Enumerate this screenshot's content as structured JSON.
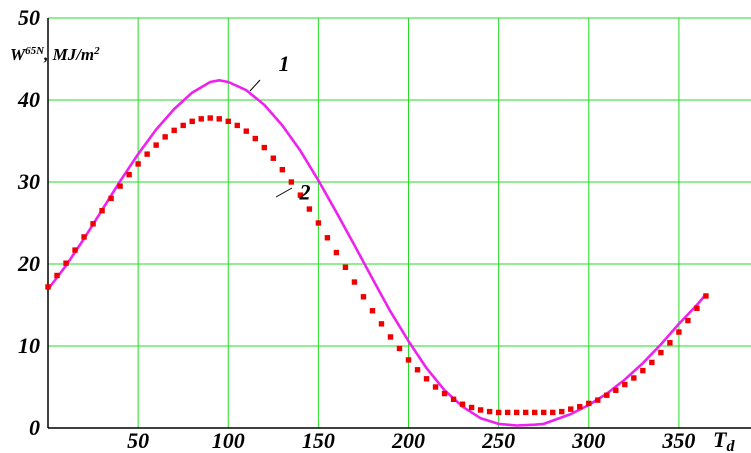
{
  "chart_data": {
    "type": "line",
    "ylabel_main": "W",
    "ylabel_sup": "65N",
    "ylabel_unit": ", MJ/m",
    "ylabel_unit_sup": "2",
    "xlabel_main": "T",
    "xlabel_sub": "d",
    "xlim": [
      0,
      390
    ],
    "ylim": [
      0,
      50
    ],
    "x_ticks": [
      50,
      100,
      150,
      200,
      250,
      300,
      350
    ],
    "y_ticks": [
      0,
      10,
      20,
      30,
      40,
      50
    ],
    "grid": true,
    "colors": {
      "grid": "#22dd22",
      "series1": "#ee22ee",
      "series2": "#ee0000",
      "axis": "#000000"
    },
    "series": [
      {
        "name": "1",
        "style": "solid",
        "x": [
          0,
          10,
          20,
          30,
          40,
          50,
          60,
          70,
          80,
          90,
          95,
          100,
          110,
          120,
          130,
          140,
          150,
          160,
          170,
          180,
          190,
          200,
          210,
          220,
          230,
          240,
          250,
          260,
          270,
          275,
          280,
          290,
          300,
          310,
          320,
          330,
          340,
          350,
          360,
          365
        ],
        "values": [
          16.9,
          19.8,
          23.1,
          26.6,
          30.1,
          33.4,
          36.4,
          38.9,
          40.9,
          42.2,
          42.4,
          42.2,
          41.2,
          39.4,
          36.9,
          33.8,
          30.2,
          26.3,
          22.3,
          18.2,
          14.2,
          10.6,
          7.3,
          4.6,
          2.6,
          1.2,
          0.5,
          0.3,
          0.4,
          0.5,
          0.9,
          1.7,
          2.8,
          4.2,
          5.9,
          7.9,
          10.2,
          12.7,
          15.0,
          16.3
        ]
      },
      {
        "name": "2",
        "style": "dotted",
        "x": [
          0,
          5,
          10,
          15,
          20,
          25,
          30,
          35,
          40,
          45,
          50,
          55,
          60,
          65,
          70,
          75,
          80,
          85,
          90,
          95,
          100,
          105,
          110,
          115,
          120,
          125,
          130,
          135,
          140,
          145,
          150,
          155,
          160,
          165,
          170,
          175,
          180,
          185,
          190,
          195,
          200,
          205,
          210,
          215,
          220,
          225,
          230,
          235,
          240,
          245,
          250,
          255,
          260,
          265,
          270,
          275,
          280,
          285,
          290,
          295,
          300,
          305,
          310,
          315,
          320,
          325,
          330,
          335,
          340,
          345,
          350,
          355,
          360,
          365
        ],
        "values": [
          17.2,
          18.6,
          20.1,
          21.7,
          23.3,
          24.9,
          26.5,
          28.0,
          29.5,
          30.9,
          32.2,
          33.4,
          34.5,
          35.5,
          36.3,
          36.9,
          37.4,
          37.7,
          37.8,
          37.7,
          37.4,
          36.9,
          36.2,
          35.3,
          34.2,
          32.9,
          31.5,
          30.0,
          28.4,
          26.7,
          25.0,
          23.2,
          21.4,
          19.6,
          17.8,
          16.0,
          14.3,
          12.7,
          11.1,
          9.7,
          8.3,
          7.1,
          6.0,
          5.0,
          4.2,
          3.5,
          2.9,
          2.5,
          2.2,
          2.0,
          1.9,
          1.9,
          1.9,
          1.9,
          1.9,
          1.9,
          1.9,
          2.0,
          2.3,
          2.6,
          3.0,
          3.4,
          4.0,
          4.6,
          5.3,
          6.1,
          7.0,
          8.0,
          9.2,
          10.4,
          11.7,
          13.1,
          14.6,
          16.1
        ]
      }
    ],
    "annotations": [
      {
        "text": "1",
        "x": 93,
        "y": 43.8
      },
      {
        "text": "2",
        "x": 124,
        "y": 28.6
      }
    ]
  }
}
